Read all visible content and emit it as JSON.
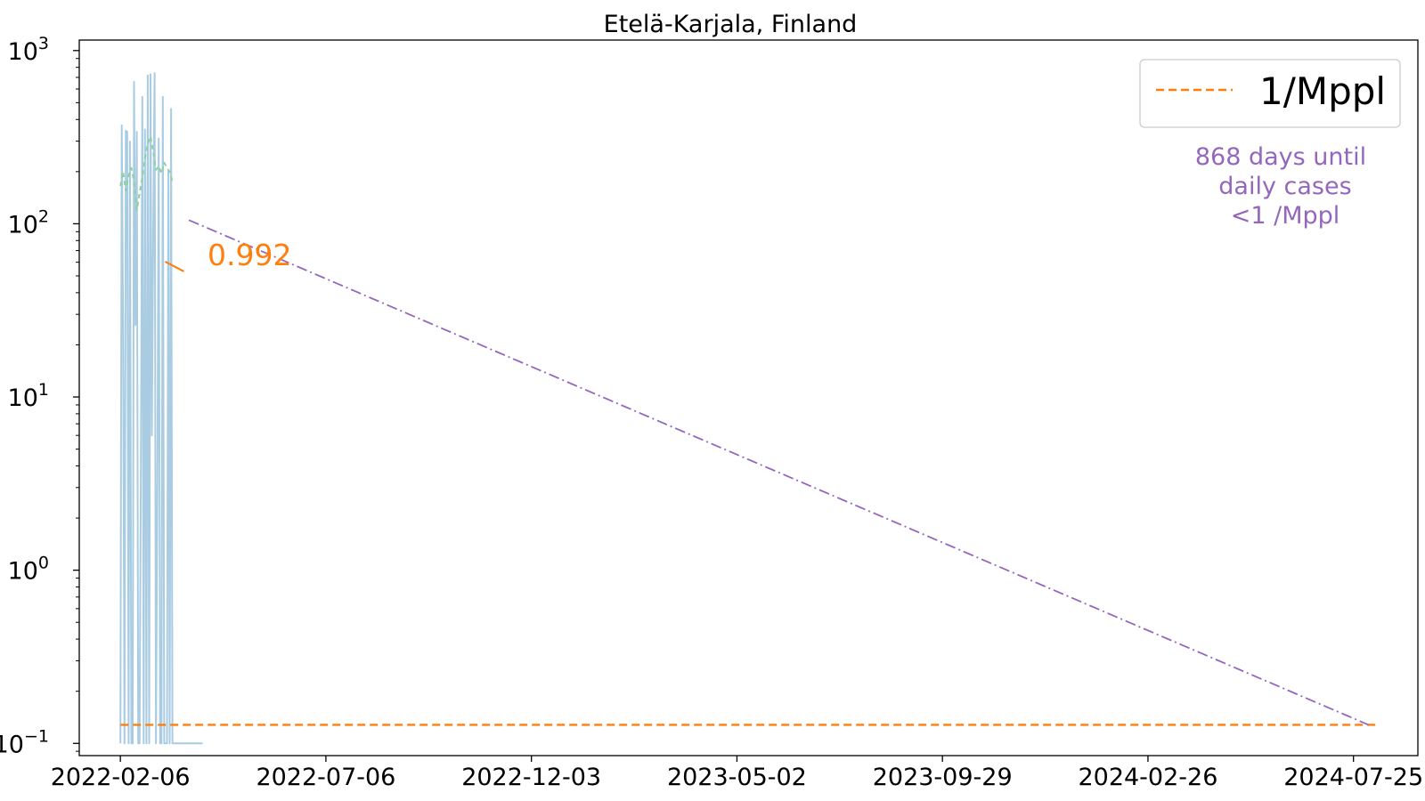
{
  "chart_data": {
    "type": "line",
    "title": "Etelä-Karjala, Finland",
    "xlabel": "",
    "ylabel": "",
    "y_scale": "log",
    "ylim": [
      0.085,
      1150
    ],
    "xlim": [
      "2022-01-07",
      "2024-09-10"
    ],
    "grid": false,
    "legend_placement": "top-right",
    "x_ticks": [
      "2022-02-06",
      "2022-07-06",
      "2022-12-03",
      "2023-05-02",
      "2023-09-29",
      "2024-02-26",
      "2024-07-25"
    ],
    "y_ticks": [
      {
        "value": 0.1,
        "base": "10",
        "exp": "−1"
      },
      {
        "value": 1,
        "base": "10",
        "exp": "0"
      },
      {
        "value": 10,
        "base": "10",
        "exp": "1"
      },
      {
        "value": 100,
        "base": "10",
        "exp": "2"
      },
      {
        "value": 1000,
        "base": "10",
        "exp": "3"
      }
    ],
    "series": [
      {
        "role": "daily",
        "color": "#a9cce3",
        "x": [
          "2022-02-06",
          "2022-02-07",
          "2022-02-08",
          "2022-02-09",
          "2022-02-10",
          "2022-02-11",
          "2022-02-12",
          "2022-02-13",
          "2022-02-14",
          "2022-02-15",
          "2022-02-16",
          "2022-02-17",
          "2022-02-18",
          "2022-02-19",
          "2022-02-20",
          "2022-02-21",
          "2022-02-22",
          "2022-02-23",
          "2022-02-24",
          "2022-02-25",
          "2022-02-26",
          "2022-02-27",
          "2022-02-28",
          "2022-03-01",
          "2022-03-02",
          "2022-03-03",
          "2022-03-04",
          "2022-03-05",
          "2022-03-06",
          "2022-03-07",
          "2022-03-08",
          "2022-03-09",
          "2022-03-10",
          "2022-03-11",
          "2022-03-12",
          "2022-03-13",
          "2022-03-14",
          "2022-03-15",
          "2022-03-16",
          "2022-03-17",
          "2022-03-18",
          "2022-03-19",
          "2022-03-20",
          "2022-03-21",
          "2022-03-22",
          "2022-03-23",
          "2022-03-24",
          "2022-03-25",
          "2022-03-26",
          "2022-03-27",
          "2022-03-28",
          "2022-03-29",
          "2022-03-30",
          "2022-03-31",
          "2022-04-01",
          "2022-04-02",
          "2022-04-03",
          "2022-04-04",
          "2022-04-05",
          "2022-04-06",
          "2022-04-07"
        ],
        "y": [
          0.1,
          370,
          27,
          0.1,
          345,
          340,
          0.1,
          298,
          0.1,
          0.1,
          660,
          26,
          340,
          0.1,
          0.1,
          4,
          540,
          0.1,
          350,
          0.1,
          720,
          0.1,
          730,
          6,
          100,
          740,
          0.1,
          3,
          310,
          0.1,
          0.1,
          540,
          0.1,
          0.1,
          0.1,
          200,
          0.1,
          460,
          0.1,
          0.1,
          0.1,
          0.1,
          0.1,
          0.1,
          0.1,
          0.1,
          0.1,
          0.1,
          0.1,
          0.1,
          0.1,
          0.1,
          0.1,
          0.1,
          0.1,
          0.1,
          0.1,
          0.1,
          0.1,
          0.1,
          0.1
        ]
      },
      {
        "role": "rolling-average",
        "color": "#8fd19e",
        "x": [
          "2022-02-06",
          "2022-02-08",
          "2022-02-10",
          "2022-02-12",
          "2022-02-14",
          "2022-02-16",
          "2022-02-18",
          "2022-02-20",
          "2022-02-22",
          "2022-02-24",
          "2022-02-26",
          "2022-02-28",
          "2022-03-02",
          "2022-03-04",
          "2022-03-06",
          "2022-03-08",
          "2022-03-10",
          "2022-03-12",
          "2022-03-14",
          "2022-03-16"
        ],
        "y": [
          165,
          200,
          155,
          190,
          210,
          175,
          120,
          150,
          185,
          240,
          290,
          320,
          260,
          205,
          215,
          195,
          225,
          210,
          200,
          175
        ]
      },
      {
        "name": "1/Mppl",
        "role": "threshold",
        "color": "#ff7f0e",
        "x": [
          "2022-02-06",
          "2024-08-10"
        ],
        "y": [
          0.128,
          0.128
        ]
      },
      {
        "role": "projection",
        "color": "#9467bd",
        "x": [
          "2022-03-28",
          "2024-08-05"
        ],
        "y": [
          105,
          0.128
        ]
      }
    ],
    "annotations": [
      {
        "text": "0.992",
        "color": "#ff7f0e",
        "x": "2022-03-12",
        "y": 57
      },
      {
        "lines": [
          "868 days until",
          "daily cases",
          "<1 /Mppl"
        ],
        "color": "#9467bd",
        "placement": "upper-right"
      }
    ]
  }
}
